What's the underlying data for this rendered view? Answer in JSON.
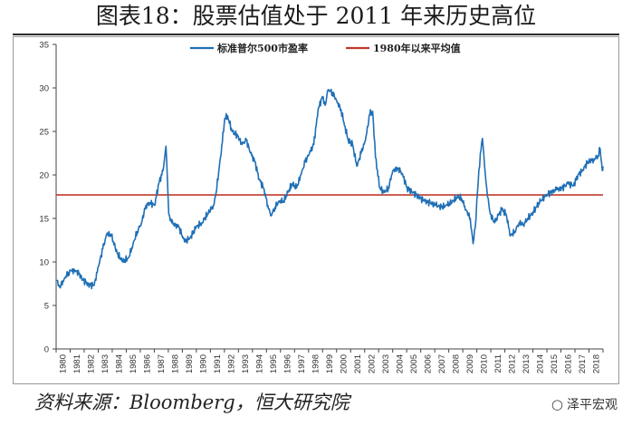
{
  "title": "图表18：股票估值处于 2011 年来历史高位",
  "source": "资料来源：Bloomberg，恒大研究院",
  "watermark": {
    "icon": "wechat-icon",
    "text": "泽平宏观"
  },
  "chart_data": {
    "type": "line",
    "title": "",
    "xlabel": "",
    "ylabel": "",
    "ylim": [
      0,
      35
    ],
    "yticks": [
      0,
      5,
      10,
      15,
      20,
      25,
      30,
      35
    ],
    "xlim": [
      1979.95,
      2018.05
    ],
    "xtick_labels": [
      "1980",
      "1981",
      "1982",
      "1983",
      "1984",
      "1985",
      "1986",
      "1987",
      "1988",
      "1989",
      "1990",
      "1991",
      "1992",
      "1993",
      "1994",
      "1995",
      "1996",
      "1997",
      "1998",
      "1999",
      "2000",
      "2001",
      "2002",
      "2003",
      "2004",
      "2005",
      "2006",
      "2007",
      "2008",
      "2009",
      "2010",
      "2011",
      "2012",
      "2013",
      "2014",
      "2015",
      "2016",
      "2017",
      "2018"
    ],
    "grid": false,
    "legend_position": "top",
    "series": [
      {
        "name": "标准普尔500市盈率",
        "color": "#1f6fb5",
        "points": [
          [
            1980.0,
            7.8
          ],
          [
            1980.2,
            7.1
          ],
          [
            1980.5,
            8.0
          ],
          [
            1980.8,
            8.8
          ],
          [
            1981.0,
            9.0
          ],
          [
            1981.4,
            9.0
          ],
          [
            1981.8,
            8.0
          ],
          [
            1982.2,
            7.4
          ],
          [
            1982.6,
            7.3
          ],
          [
            1982.9,
            9.5
          ],
          [
            1983.2,
            11.5
          ],
          [
            1983.5,
            13.3
          ],
          [
            1983.8,
            13.0
          ],
          [
            1984.2,
            11.0
          ],
          [
            1984.6,
            10.0
          ],
          [
            1985.0,
            10.5
          ],
          [
            1985.3,
            12.0
          ],
          [
            1985.6,
            13.5
          ],
          [
            1985.9,
            14.5
          ],
          [
            1986.2,
            16.5
          ],
          [
            1986.5,
            16.8
          ],
          [
            1986.8,
            16.5
          ],
          [
            1987.1,
            19.0
          ],
          [
            1987.4,
            20.5
          ],
          [
            1987.6,
            23.3
          ],
          [
            1987.8,
            15.5
          ],
          [
            1988.0,
            14.5
          ],
          [
            1988.5,
            14.0
          ],
          [
            1988.9,
            12.3
          ],
          [
            1989.3,
            12.8
          ],
          [
            1989.7,
            14.0
          ],
          [
            1990.1,
            14.5
          ],
          [
            1990.5,
            15.5
          ],
          [
            1990.9,
            16.5
          ],
          [
            1991.1,
            18.0
          ],
          [
            1991.4,
            22.0
          ],
          [
            1991.7,
            26.5
          ],
          [
            1991.9,
            26.8
          ],
          [
            1992.2,
            25.0
          ],
          [
            1992.6,
            24.5
          ],
          [
            1992.9,
            23.5
          ],
          [
            1993.2,
            24.0
          ],
          [
            1993.5,
            22.5
          ],
          [
            1993.8,
            21.5
          ],
          [
            1994.1,
            19.5
          ],
          [
            1994.4,
            18.5
          ],
          [
            1994.7,
            16.5
          ],
          [
            1994.9,
            15.3
          ],
          [
            1995.2,
            16.3
          ],
          [
            1995.5,
            17.0
          ],
          [
            1995.8,
            17.0
          ],
          [
            1996.1,
            18.0
          ],
          [
            1996.4,
            19.0
          ],
          [
            1996.7,
            18.5
          ],
          [
            1997.0,
            20.0
          ],
          [
            1997.3,
            21.5
          ],
          [
            1997.6,
            22.5
          ],
          [
            1997.9,
            23.5
          ],
          [
            1998.2,
            27.5
          ],
          [
            1998.5,
            29.0
          ],
          [
            1998.7,
            28.0
          ],
          [
            1998.9,
            29.8
          ],
          [
            1999.2,
            29.5
          ],
          [
            1999.5,
            28.5
          ],
          [
            1999.8,
            27.5
          ],
          [
            2000.0,
            26.0
          ],
          [
            2000.3,
            24.0
          ],
          [
            2000.6,
            23.5
          ],
          [
            2000.9,
            21.0
          ],
          [
            2001.2,
            22.5
          ],
          [
            2001.5,
            24.0
          ],
          [
            2001.8,
            27.0
          ],
          [
            2002.0,
            27.3
          ],
          [
            2002.2,
            22.0
          ],
          [
            2002.5,
            18.5
          ],
          [
            2002.8,
            18.0
          ],
          [
            2003.1,
            18.5
          ],
          [
            2003.4,
            20.5
          ],
          [
            2003.8,
            20.8
          ],
          [
            2004.1,
            20.0
          ],
          [
            2004.4,
            18.5
          ],
          [
            2004.8,
            18.0
          ],
          [
            2005.2,
            17.5
          ],
          [
            2005.6,
            17.0
          ],
          [
            2006.0,
            16.8
          ],
          [
            2006.4,
            16.5
          ],
          [
            2006.8,
            16.3
          ],
          [
            2007.2,
            16.5
          ],
          [
            2007.6,
            17.0
          ],
          [
            2007.9,
            17.5
          ],
          [
            2008.2,
            17.3
          ],
          [
            2008.5,
            16.0
          ],
          [
            2008.8,
            15.0
          ],
          [
            2009.0,
            12.1
          ],
          [
            2009.15,
            14.0
          ],
          [
            2009.3,
            18.0
          ],
          [
            2009.5,
            22.5
          ],
          [
            2009.65,
            24.2
          ],
          [
            2009.8,
            21.0
          ],
          [
            2010.0,
            17.5
          ],
          [
            2010.2,
            15.5
          ],
          [
            2010.5,
            14.5
          ],
          [
            2010.8,
            15.5
          ],
          [
            2011.0,
            16.0
          ],
          [
            2011.3,
            15.5
          ],
          [
            2011.6,
            13.0
          ],
          [
            2011.9,
            13.5
          ],
          [
            2012.2,
            14.5
          ],
          [
            2012.5,
            14.3
          ],
          [
            2012.8,
            15.0
          ],
          [
            2013.1,
            15.5
          ],
          [
            2013.4,
            16.3
          ],
          [
            2013.7,
            17.0
          ],
          [
            2014.0,
            17.5
          ],
          [
            2014.4,
            18.0
          ],
          [
            2014.8,
            18.3
          ],
          [
            2015.2,
            18.5
          ],
          [
            2015.6,
            19.0
          ],
          [
            2016.0,
            18.8
          ],
          [
            2016.3,
            20.0
          ],
          [
            2016.6,
            20.5
          ],
          [
            2017.0,
            21.5
          ],
          [
            2017.4,
            21.8
          ],
          [
            2017.7,
            22.2
          ],
          [
            2017.85,
            23.0
          ],
          [
            2018.0,
            20.5
          ],
          [
            2018.05,
            21.0
          ]
        ]
      },
      {
        "name": "1980年以来平均值",
        "color": "#c0392b",
        "points": [
          [
            1979.95,
            17.7
          ],
          [
            2018.05,
            17.7
          ]
        ]
      }
    ]
  }
}
